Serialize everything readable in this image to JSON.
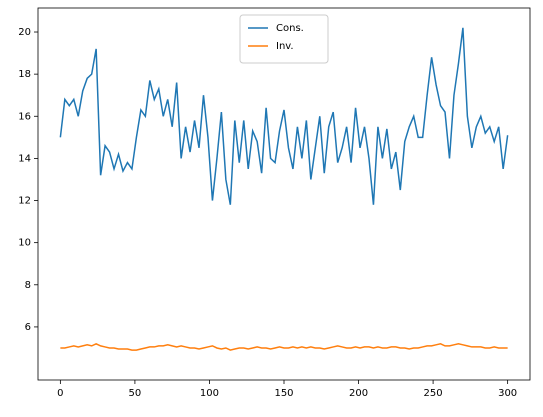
{
  "chart_data": {
    "type": "line",
    "x": [
      0,
      3,
      6,
      9,
      12,
      15,
      18,
      21,
      24,
      27,
      30,
      33,
      36,
      39,
      42,
      45,
      48,
      51,
      54,
      57,
      60,
      63,
      66,
      69,
      72,
      75,
      78,
      81,
      84,
      87,
      90,
      93,
      96,
      99,
      102,
      105,
      108,
      111,
      114,
      117,
      120,
      123,
      126,
      129,
      132,
      135,
      138,
      141,
      144,
      147,
      150,
      153,
      156,
      159,
      162,
      165,
      168,
      171,
      174,
      177,
      180,
      183,
      186,
      189,
      192,
      195,
      198,
      201,
      204,
      207,
      210,
      213,
      216,
      219,
      222,
      225,
      228,
      231,
      234,
      237,
      240,
      243,
      246,
      249,
      252,
      255,
      258,
      261,
      264,
      267,
      270,
      273,
      276,
      279,
      282,
      285,
      288,
      291,
      294,
      297,
      300
    ],
    "series": [
      {
        "name": "Cons.",
        "color": "#1f77b4",
        "values": [
          15.0,
          16.8,
          16.5,
          16.8,
          16.0,
          17.2,
          17.8,
          18.0,
          19.2,
          13.2,
          14.6,
          14.3,
          13.5,
          14.2,
          13.4,
          13.8,
          13.5,
          15.0,
          16.3,
          16.0,
          17.7,
          16.8,
          17.3,
          16.0,
          16.8,
          15.5,
          17.6,
          14.0,
          15.5,
          14.3,
          15.8,
          14.5,
          17.0,
          15.0,
          12.0,
          14.0,
          16.2,
          13.0,
          11.8,
          15.8,
          13.8,
          15.8,
          13.5,
          15.3,
          14.8,
          13.3,
          16.4,
          14.0,
          13.8,
          15.3,
          16.3,
          14.5,
          13.5,
          15.5,
          14.0,
          15.8,
          13.0,
          14.5,
          16.0,
          13.3,
          15.5,
          16.2,
          13.8,
          14.5,
          15.5,
          13.8,
          16.4,
          14.5,
          15.5,
          14.0,
          11.8,
          15.5,
          14.0,
          15.4,
          13.5,
          14.3,
          12.5,
          14.8,
          15.5,
          16.0,
          15.0,
          15.0,
          17.0,
          18.8,
          17.5,
          16.5,
          16.2,
          14.0,
          17.0,
          18.5,
          20.2,
          16.0,
          14.5,
          15.5,
          16.0,
          15.2,
          15.5,
          14.8,
          15.5,
          13.5,
          15.1
        ]
      },
      {
        "name": "Inv.",
        "color": "#ff7f0e",
        "values": [
          5.0,
          5.0,
          5.05,
          5.1,
          5.05,
          5.1,
          5.15,
          5.1,
          5.2,
          5.1,
          5.05,
          5.0,
          5.0,
          4.95,
          4.95,
          4.95,
          4.9,
          4.9,
          4.95,
          5.0,
          5.05,
          5.05,
          5.1,
          5.1,
          5.15,
          5.1,
          5.05,
          5.1,
          5.05,
          5.0,
          5.0,
          4.95,
          5.0,
          5.05,
          5.1,
          5.0,
          4.95,
          5.0,
          4.9,
          4.95,
          5.0,
          5.0,
          4.95,
          5.0,
          5.05,
          5.0,
          5.0,
          4.95,
          5.0,
          5.05,
          5.0,
          5.0,
          5.05,
          5.0,
          5.05,
          5.0,
          5.05,
          5.0,
          5.0,
          4.95,
          5.0,
          5.05,
          5.1,
          5.05,
          5.0,
          5.0,
          5.05,
          5.0,
          5.05,
          5.05,
          5.0,
          5.05,
          5.0,
          5.0,
          5.05,
          5.05,
          5.0,
          5.0,
          4.95,
          5.0,
          5.0,
          5.05,
          5.1,
          5.1,
          5.15,
          5.2,
          5.1,
          5.1,
          5.15,
          5.2,
          5.15,
          5.1,
          5.05,
          5.05,
          5.05,
          5.0,
          5.0,
          5.05,
          5.0,
          5.0,
          5.0
        ]
      }
    ],
    "xlim": [
      -15,
      315
    ],
    "xticks": [
      0,
      50,
      100,
      150,
      200,
      250,
      300
    ],
    "ylim": [
      3.48,
      21.14
    ],
    "yticks": [
      6,
      8,
      10,
      12,
      14,
      16,
      18,
      20
    ],
    "legend": "upper center"
  }
}
